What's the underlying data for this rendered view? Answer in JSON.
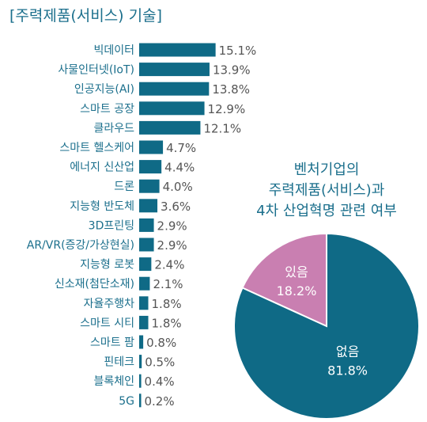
{
  "chart_data": [
    {
      "type": "bar",
      "title": "[주력제품(서비스) 기술]",
      "orientation": "horizontal",
      "categories": [
        "빅데이터",
        "사물인터넷(IoT)",
        "인공지능(AI)",
        "스마트 공장",
        "클라우드",
        "스마트 헬스케어",
        "에너지 신산업",
        "드론",
        "지능형 반도체",
        "3D프린팅",
        "AR/VR(증강/가상현실)",
        "지능형 로봇",
        "신소재(첨단소재)",
        "자율주행차",
        "스마트 시티",
        "스마트 팜",
        "핀테크",
        "블록체인",
        "5G"
      ],
      "values": [
        15.1,
        13.9,
        13.8,
        12.9,
        12.1,
        4.7,
        4.4,
        4.0,
        3.6,
        2.9,
        2.9,
        2.4,
        2.1,
        1.8,
        1.8,
        0.8,
        0.5,
        0.4,
        0.2
      ],
      "value_labels": [
        "15.1%",
        "13.9%",
        "13.8%",
        "12.9%",
        "12.1%",
        "4.7%",
        "4.4%",
        "4.0%",
        "3.6%",
        "2.9%",
        "2.9%",
        "2.4%",
        "2.1%",
        "1.8%",
        "1.8%",
        "0.8%",
        "0.5%",
        "0.4%",
        "0.2%"
      ],
      "unit": "%",
      "color": "#0f6a86"
    },
    {
      "type": "pie",
      "title": [
        "벤처기업의",
        "주력제품(서비스)과",
        "4차 산업혁명 관련 여부"
      ],
      "slices": [
        {
          "label": "있음",
          "value": 18.2,
          "value_label": "18.2%",
          "color": "#c97fb1"
        },
        {
          "label": "없음",
          "value": 81.8,
          "value_label": "81.8%",
          "color": "#0f6a86"
        }
      ]
    }
  ]
}
